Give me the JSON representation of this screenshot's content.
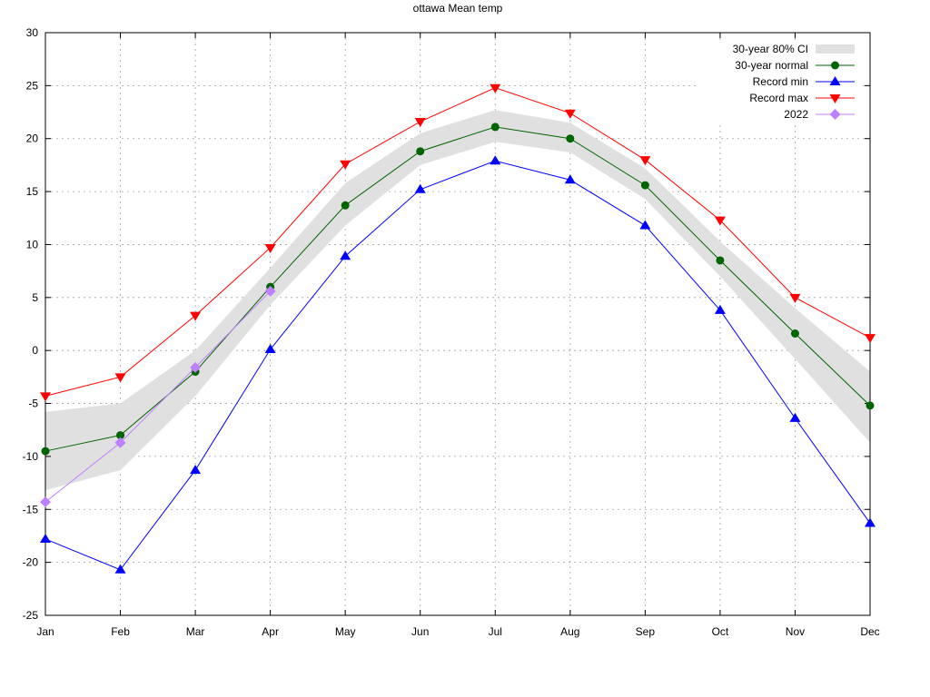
{
  "chart_data": {
    "type": "line",
    "title": "ottawa Mean temp",
    "xlabel": "",
    "ylabel": "",
    "categories": [
      "Jan",
      "Feb",
      "Mar",
      "Apr",
      "May",
      "Jun",
      "Jul",
      "Aug",
      "Sep",
      "Oct",
      "Nov",
      "Dec"
    ],
    "ylim": [
      -25,
      30
    ],
    "yticks": [
      -25,
      -20,
      -15,
      -10,
      -5,
      0,
      5,
      10,
      15,
      20,
      25,
      30
    ],
    "grid": true,
    "legend_position": "top-right",
    "ci_band": {
      "name": "30-year 80% CI",
      "color": "#e0e0e0",
      "lower": [
        -13.2,
        -11.3,
        -4.3,
        4.3,
        11.8,
        17.5,
        19.7,
        18.7,
        14.3,
        7.0,
        -0.8,
        -8.7
      ],
      "upper": [
        -5.8,
        -5.0,
        0.0,
        7.8,
        15.8,
        20.5,
        22.7,
        21.5,
        17.2,
        10.3,
        4.0,
        -2.0
      ]
    },
    "series": [
      {
        "name": "30-year normal",
        "color": "#006400",
        "marker": "circle",
        "values": [
          -9.5,
          -8.0,
          -2.0,
          6.0,
          13.7,
          18.8,
          21.1,
          20.0,
          15.6,
          8.5,
          1.6,
          -5.2
        ]
      },
      {
        "name": "Record min",
        "color": "#0000ff",
        "marker": "triangle-up",
        "values": [
          -17.8,
          -20.7,
          -11.3,
          0.1,
          8.9,
          15.2,
          17.9,
          16.1,
          11.8,
          3.8,
          -6.4,
          -16.3
        ]
      },
      {
        "name": "Record max",
        "color": "#ff0000",
        "marker": "triangle-down",
        "values": [
          -4.3,
          -2.5,
          3.3,
          9.7,
          17.6,
          21.6,
          24.8,
          22.4,
          18.0,
          12.3,
          5.0,
          1.2
        ]
      },
      {
        "name": "2022",
        "color": "#bf80ff",
        "marker": "diamond",
        "values": [
          -14.3,
          -8.7,
          -1.6,
          5.6,
          null,
          null,
          null,
          null,
          null,
          null,
          null,
          null
        ]
      }
    ]
  }
}
